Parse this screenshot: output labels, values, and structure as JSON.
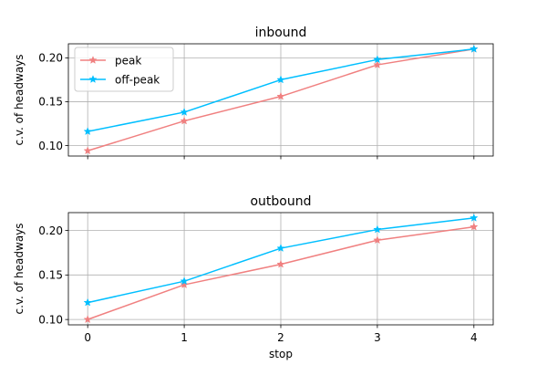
{
  "chart_data": [
    {
      "type": "line",
      "title": "inbound",
      "xlabel": "",
      "ylabel": "c.v. of headways",
      "x": [
        0,
        1,
        2,
        3,
        4
      ],
      "ylim": [
        0.088,
        0.216
      ],
      "xlim": [
        -0.2,
        4.2
      ],
      "yticks": [
        0.1,
        0.15,
        0.2
      ],
      "ytick_labels": [
        "0.10",
        "0.15",
        "0.20"
      ],
      "xticks": [
        0,
        1,
        2,
        3,
        4
      ],
      "xtick_labels": [],
      "grid": true,
      "legend": "upper left",
      "series": [
        {
          "name": "peak",
          "color": "#f08080",
          "marker": "star",
          "values": [
            0.094,
            0.128,
            0.156,
            0.192,
            0.21
          ]
        },
        {
          "name": "off-peak",
          "color": "#00bfff",
          "marker": "star",
          "values": [
            0.116,
            0.138,
            0.175,
            0.198,
            0.21
          ]
        }
      ]
    },
    {
      "type": "line",
      "title": "outbound",
      "xlabel": "stop",
      "ylabel": "c.v. of headways",
      "x": [
        0,
        1,
        2,
        3,
        4
      ],
      "ylim": [
        0.094,
        0.22
      ],
      "xlim": [
        -0.2,
        4.2
      ],
      "yticks": [
        0.1,
        0.15,
        0.2
      ],
      "ytick_labels": [
        "0.10",
        "0.15",
        "0.20"
      ],
      "xticks": [
        0,
        1,
        2,
        3,
        4
      ],
      "xtick_labels": [
        "0",
        "1",
        "2",
        "3",
        "4"
      ],
      "grid": true,
      "legend": "",
      "series": [
        {
          "name": "peak",
          "color": "#f08080",
          "marker": "star",
          "values": [
            0.1,
            0.139,
            0.162,
            0.189,
            0.204
          ]
        },
        {
          "name": "off-peak",
          "color": "#00bfff",
          "marker": "star",
          "values": [
            0.119,
            0.143,
            0.18,
            0.201,
            0.214
          ]
        }
      ]
    }
  ]
}
